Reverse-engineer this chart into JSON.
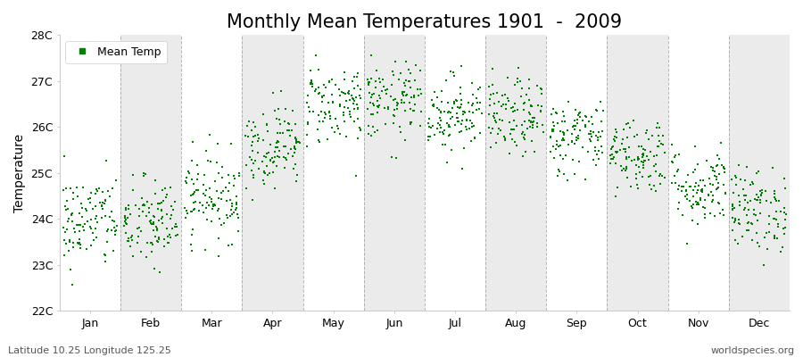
{
  "title": "Monthly Mean Temperatures 1901  -  2009",
  "ylabel": "Temperature",
  "bottom_left_text": "Latitude 10.25 Longitude 125.25",
  "bottom_right_text": "worldspecies.org",
  "legend_label": "Mean Temp",
  "ylim": [
    22.0,
    28.0
  ],
  "ytick_labels": [
    "22C",
    "23C",
    "24C",
    "25C",
    "26C",
    "27C",
    "28C"
  ],
  "ytick_values": [
    22,
    23,
    24,
    25,
    26,
    27,
    28
  ],
  "months": [
    "Jan",
    "Feb",
    "Mar",
    "Apr",
    "May",
    "Jun",
    "Jul",
    "Aug",
    "Sep",
    "Oct",
    "Nov",
    "Dec"
  ],
  "month_centers": [
    0.5,
    1.5,
    2.5,
    3.5,
    4.5,
    5.5,
    6.5,
    7.5,
    8.5,
    9.5,
    10.5,
    11.5
  ],
  "month_means": [
    23.95,
    23.9,
    24.5,
    25.6,
    26.5,
    26.55,
    26.3,
    26.2,
    25.8,
    25.4,
    24.7,
    24.2
  ],
  "month_stds": [
    0.52,
    0.5,
    0.48,
    0.45,
    0.45,
    0.42,
    0.42,
    0.42,
    0.42,
    0.42,
    0.44,
    0.46
  ],
  "n_years": 109,
  "point_color": "#008000",
  "point_marker": "s",
  "point_size": 3,
  "bg_color_odd": "#ffffff",
  "bg_color_even": "#ebebeb",
  "grid_color": "#888888",
  "title_fontsize": 15,
  "axis_label_fontsize": 10,
  "tick_label_fontsize": 9,
  "legend_fontsize": 9,
  "random_seed": 42
}
